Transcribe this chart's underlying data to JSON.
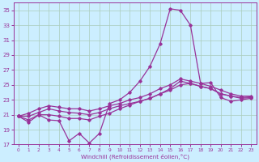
{
  "xlabel": "Windchill (Refroidissement éolien,°C)",
  "bg_color": "#cceeff",
  "grid_color": "#aaccbb",
  "line_color": "#993399",
  "xlim": [
    -0.5,
    23.5
  ],
  "ylim": [
    17,
    36
  ],
  "yticks": [
    17,
    19,
    21,
    23,
    25,
    27,
    29,
    31,
    33,
    35
  ],
  "xticks": [
    0,
    1,
    2,
    3,
    4,
    5,
    6,
    7,
    8,
    9,
    10,
    11,
    12,
    13,
    14,
    15,
    16,
    17,
    18,
    19,
    20,
    21,
    22,
    23
  ],
  "series1_x": [
    0,
    1,
    2,
    3,
    4,
    5,
    6,
    7,
    8,
    9,
    10,
    11,
    12,
    13,
    14,
    15,
    16,
    17,
    18,
    19,
    20,
    21,
    22,
    23
  ],
  "series1_y": [
    20.8,
    20.0,
    21.0,
    20.3,
    20.2,
    17.5,
    18.5,
    17.2,
    18.5,
    22.5,
    23.0,
    24.0,
    25.5,
    27.5,
    30.5,
    35.2,
    35.0,
    33.0,
    25.2,
    25.3,
    23.3,
    22.8,
    23.0,
    23.2
  ],
  "series2_x": [
    0,
    1,
    2,
    3,
    4,
    5,
    6,
    7,
    8,
    9,
    10,
    11,
    12,
    13,
    14,
    15,
    16,
    17,
    18,
    19,
    20,
    21,
    22,
    23
  ],
  "series2_y": [
    20.8,
    20.3,
    21.0,
    21.0,
    20.8,
    20.5,
    20.5,
    20.3,
    20.8,
    21.2,
    21.8,
    22.3,
    22.8,
    23.2,
    23.8,
    24.5,
    25.5,
    25.2,
    24.8,
    24.5,
    23.8,
    23.5,
    23.2,
    23.3
  ],
  "series3_x": [
    0,
    1,
    2,
    3,
    4,
    5,
    6,
    7,
    8,
    9,
    10,
    11,
    12,
    13,
    14,
    15,
    16,
    17,
    18,
    19,
    20,
    21,
    22,
    23
  ],
  "series3_y": [
    20.8,
    20.8,
    21.3,
    21.8,
    21.5,
    21.3,
    21.2,
    21.0,
    21.3,
    21.8,
    22.2,
    22.5,
    22.8,
    23.2,
    23.8,
    24.3,
    25.0,
    25.2,
    24.8,
    24.5,
    23.8,
    23.5,
    23.3,
    23.4
  ],
  "series4_x": [
    0,
    1,
    2,
    3,
    4,
    5,
    6,
    7,
    8,
    9,
    10,
    11,
    12,
    13,
    14,
    15,
    16,
    17,
    18,
    19,
    20,
    21,
    22,
    23
  ],
  "series4_y": [
    20.8,
    21.2,
    21.8,
    22.2,
    22.0,
    21.8,
    21.8,
    21.5,
    21.8,
    22.2,
    22.5,
    23.0,
    23.3,
    23.8,
    24.5,
    25.0,
    25.8,
    25.5,
    25.2,
    24.8,
    24.3,
    23.8,
    23.5,
    23.5
  ]
}
